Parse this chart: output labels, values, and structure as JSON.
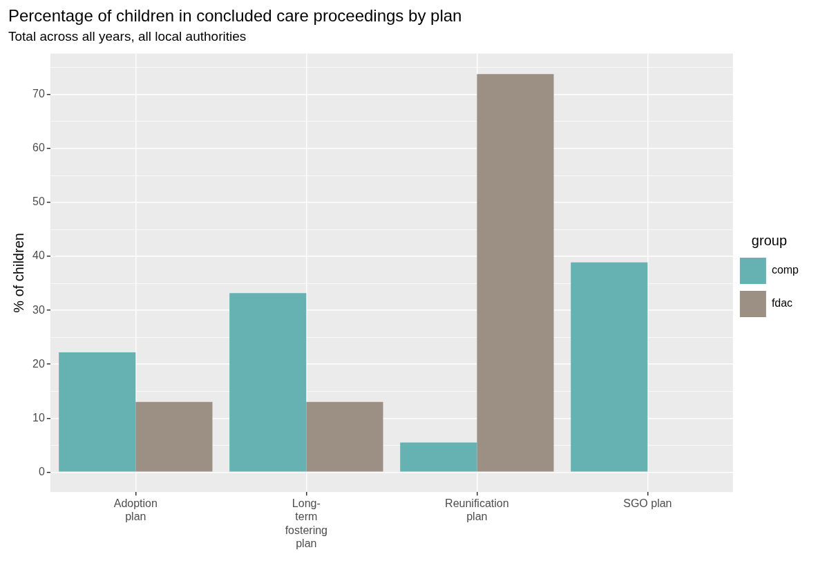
{
  "chart_data": {
    "type": "bar",
    "title": "Percentage of children in concluded care proceedings by plan",
    "subtitle": "Total across all years, all local authorities",
    "ylabel": "% of children",
    "legend_title": "group",
    "categories": [
      "Adoption\nplan",
      "Long-\nterm\nfostering\nplan",
      "Reunification\nplan",
      "SGO plan"
    ],
    "series": [
      {
        "name": "comp",
        "color": "#66b2b2",
        "values": [
          22.2,
          33.2,
          5.5,
          38.9
        ]
      },
      {
        "name": "fdac",
        "color": "#9c8f84",
        "values": [
          13.0,
          13.0,
          73.8,
          null
        ]
      }
    ],
    "ylim": [
      -3.7,
      77.6
    ],
    "yticks": [
      0,
      {
        "value": 5,
        "label": null
      },
      10,
      {
        "value": 15,
        "label": null
      },
      20,
      {
        "value": 25,
        "label": null
      },
      30,
      {
        "value": 35,
        "label": null
      },
      40,
      {
        "value": 45,
        "label": null
      },
      50,
      {
        "value": 55,
        "label": null
      },
      60,
      {
        "value": 65,
        "label": null
      },
      70,
      {
        "value": 75,
        "label": null
      }
    ],
    "grid": true,
    "legend": "right"
  }
}
